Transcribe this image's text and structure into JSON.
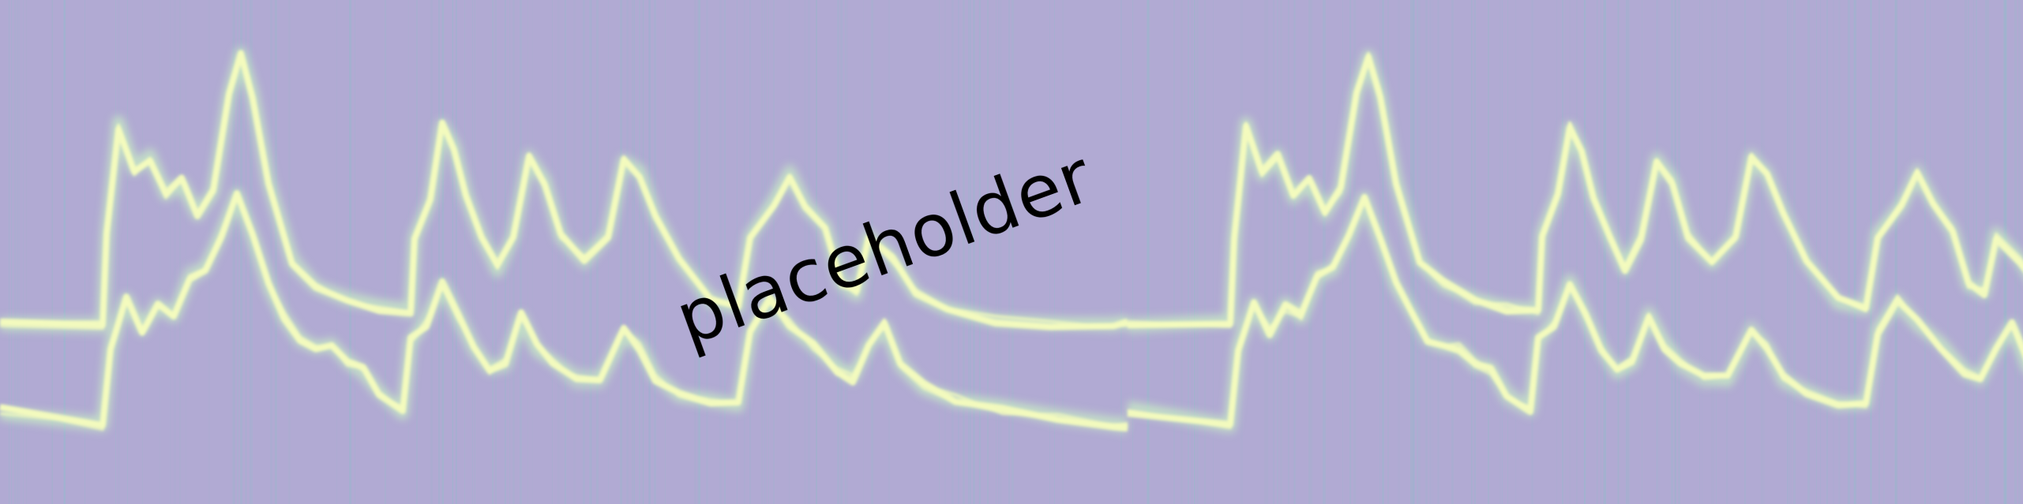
{
  "image": {
    "watermark_text": "placeholder",
    "background_color": "#b1aad3",
    "streak_color": "#7fc9c6",
    "trace_color": "#f3fbbd",
    "trace_glow_color": "#c9f2c4"
  }
}
